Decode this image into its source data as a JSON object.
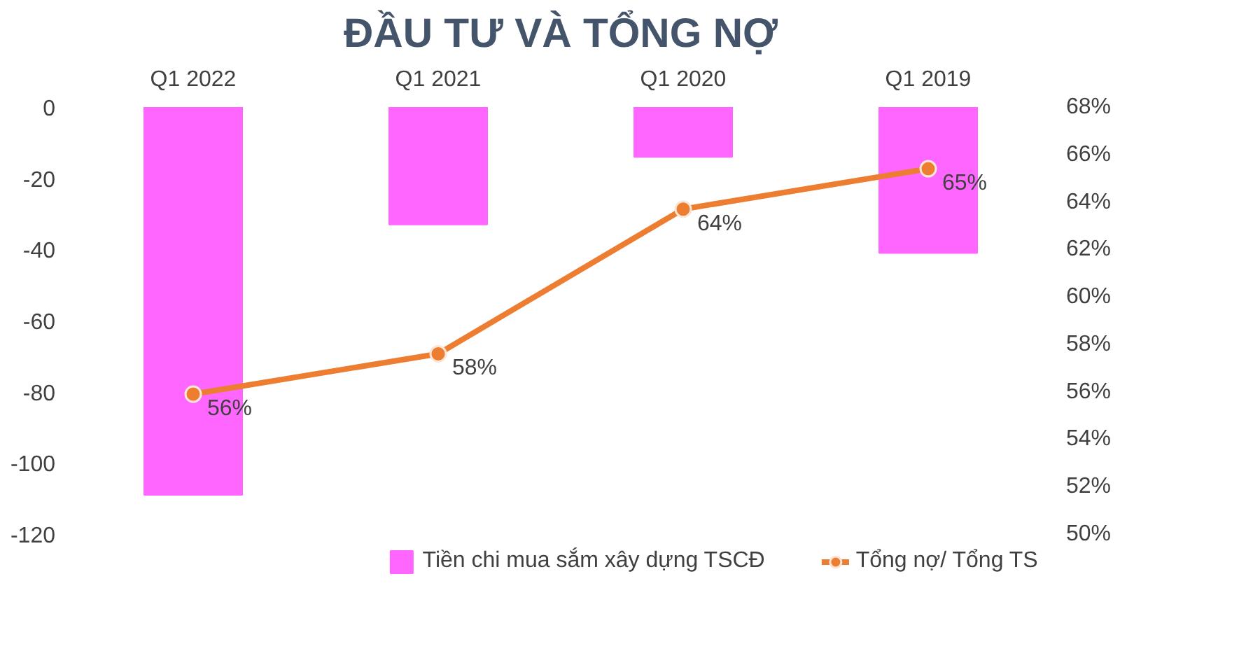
{
  "chart_data": {
    "type": "bar",
    "title": "ĐẦU TƯ VÀ TỔNG NỢ",
    "categories": [
      "Q1 2022",
      "Q1 2021",
      "Q1 2020",
      "Q1 2019"
    ],
    "series": [
      {
        "name": "Tiền chi mua sắm xây dựng TSCĐ",
        "color": "#ff66ff",
        "values": [
          -109,
          -33,
          -14,
          -41
        ]
      },
      {
        "name": "Tổng nợ/ Tổng TS",
        "type": "line",
        "axis": "y2",
        "color": "#ed7d31",
        "values": [
          55.9,
          57.6,
          63.7,
          65.4
        ],
        "value_labels": [
          "56%",
          "58%",
          "64%",
          "65%"
        ]
      }
    ],
    "ylim": [
      -120,
      0
    ],
    "yticks": [
      -120,
      -100,
      -80,
      -60,
      -40,
      -20,
      0
    ],
    "y2lim": [
      50,
      68
    ],
    "y2ticks": [
      {
        "value": 50,
        "label": "50%"
      },
      {
        "value": 52,
        "label": "52%"
      },
      {
        "value": 54,
        "label": "54%"
      },
      {
        "value": 56,
        "label": "56%"
      },
      {
        "value": 58,
        "label": "58%"
      },
      {
        "value": 60,
        "label": "60%"
      },
      {
        "value": 62,
        "label": "62%"
      },
      {
        "value": 64,
        "label": "64%"
      },
      {
        "value": 66,
        "label": "66%"
      },
      {
        "value": 68,
        "label": "68%"
      }
    ],
    "grid": false,
    "legend": "bottom",
    "marker": "circle",
    "line_style": "solid"
  }
}
